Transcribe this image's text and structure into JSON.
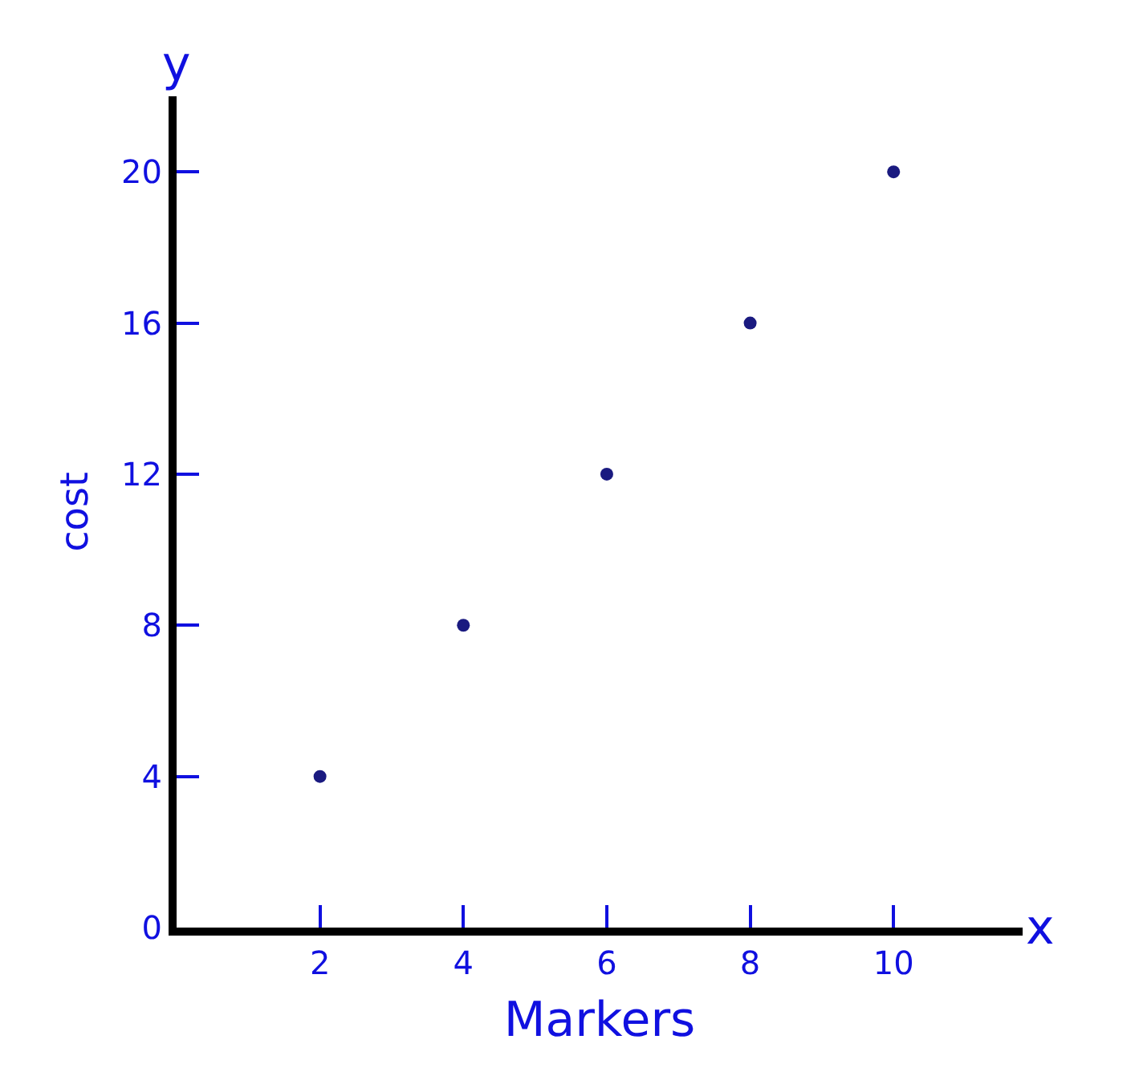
{
  "chart_data": {
    "type": "scatter",
    "xlabel": "Markers",
    "ylabel": "cost",
    "annotations": [
      "x",
      "y"
    ],
    "x": [
      2,
      4,
      6,
      8,
      10
    ],
    "series": [
      {
        "color": "#1a1a80",
        "values": [
          4,
          8,
          12,
          16,
          20
        ]
      }
    ],
    "xlim": [
      0,
      11.8
    ],
    "ylim": [
      0,
      22
    ],
    "xticks": [
      2,
      4,
      6,
      8,
      10
    ],
    "yticks": [
      0,
      4,
      8,
      12,
      16,
      20
    ],
    "marker": "circle"
  }
}
